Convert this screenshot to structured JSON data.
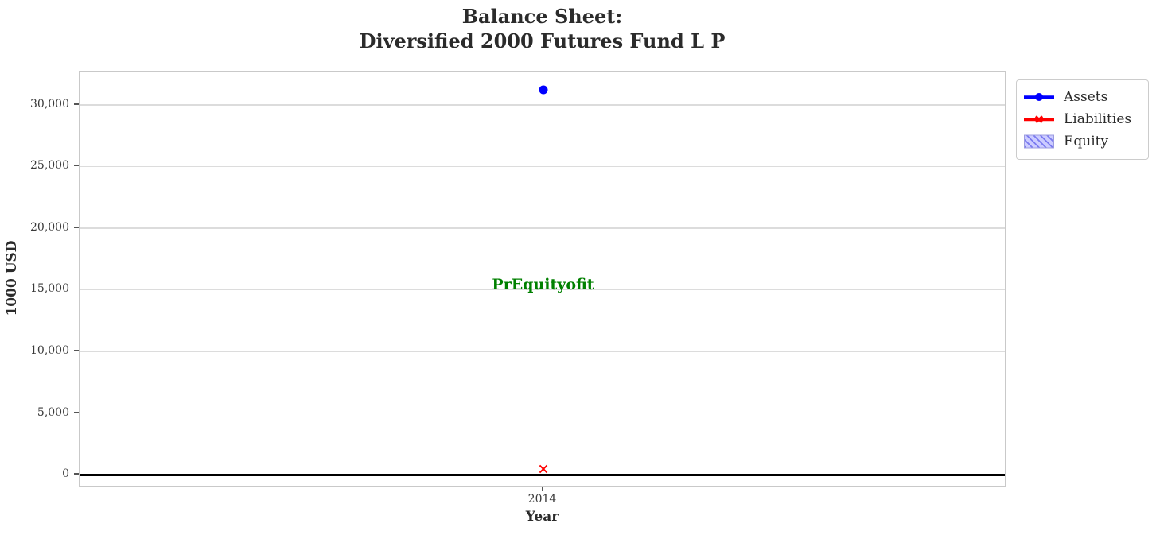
{
  "title": {
    "line1": "Balance Sheet:",
    "line2": "Diversified 2000 Futures Fund L P"
  },
  "axis": {
    "x_label": "Year",
    "y_label": "1000 USD"
  },
  "annotation": {
    "text": "PrEquityofit",
    "color": "#008000",
    "at_year": "2014",
    "at_value": 15400
  },
  "legend": {
    "entries": [
      {
        "label": "Assets",
        "marker": "line-circle-icon",
        "color": "#0000ff"
      },
      {
        "label": "Liabilities",
        "marker": "line-x-icon",
        "color": "#ff0000"
      },
      {
        "label": "Equity",
        "marker": "hatched-patch-icon",
        "fill": "#ccccff",
        "hatch_color": "#7b7bf0"
      }
    ]
  },
  "chart_data": {
    "type": "scatter",
    "title": "Balance Sheet:\nDiversified 2000 Futures Fund L P",
    "xlabel": "Year",
    "ylabel": "1000 USD",
    "x_categories": [
      "2014"
    ],
    "series": [
      {
        "name": "Assets",
        "marker": "circle",
        "color": "#0000ff",
        "values": [
          31200
        ]
      },
      {
        "name": "Liabilities",
        "marker": "x",
        "color": "#ff0000",
        "values": [
          450
        ]
      },
      {
        "name": "Equity",
        "marker": "patch",
        "color": "#ccccff",
        "values": []
      }
    ],
    "ylim": [
      -1030,
      32700
    ],
    "yticks": [
      {
        "value": 0,
        "label": "0"
      },
      {
        "value": 5000,
        "label": "5,000"
      },
      {
        "value": 10000,
        "label": "10,000"
      },
      {
        "value": 15000,
        "label": "15,000"
      },
      {
        "value": 20000,
        "label": "20,000"
      },
      {
        "value": 25000,
        "label": "25,000"
      },
      {
        "value": 30000,
        "label": "30,000"
      }
    ],
    "xticks": [
      "2014"
    ],
    "grid": true,
    "zero_line": true,
    "legend_position": "outside upper right",
    "annotations": [
      {
        "text": "PrEquityofit",
        "x": "2014",
        "y": 15400,
        "color": "#008000"
      }
    ]
  }
}
